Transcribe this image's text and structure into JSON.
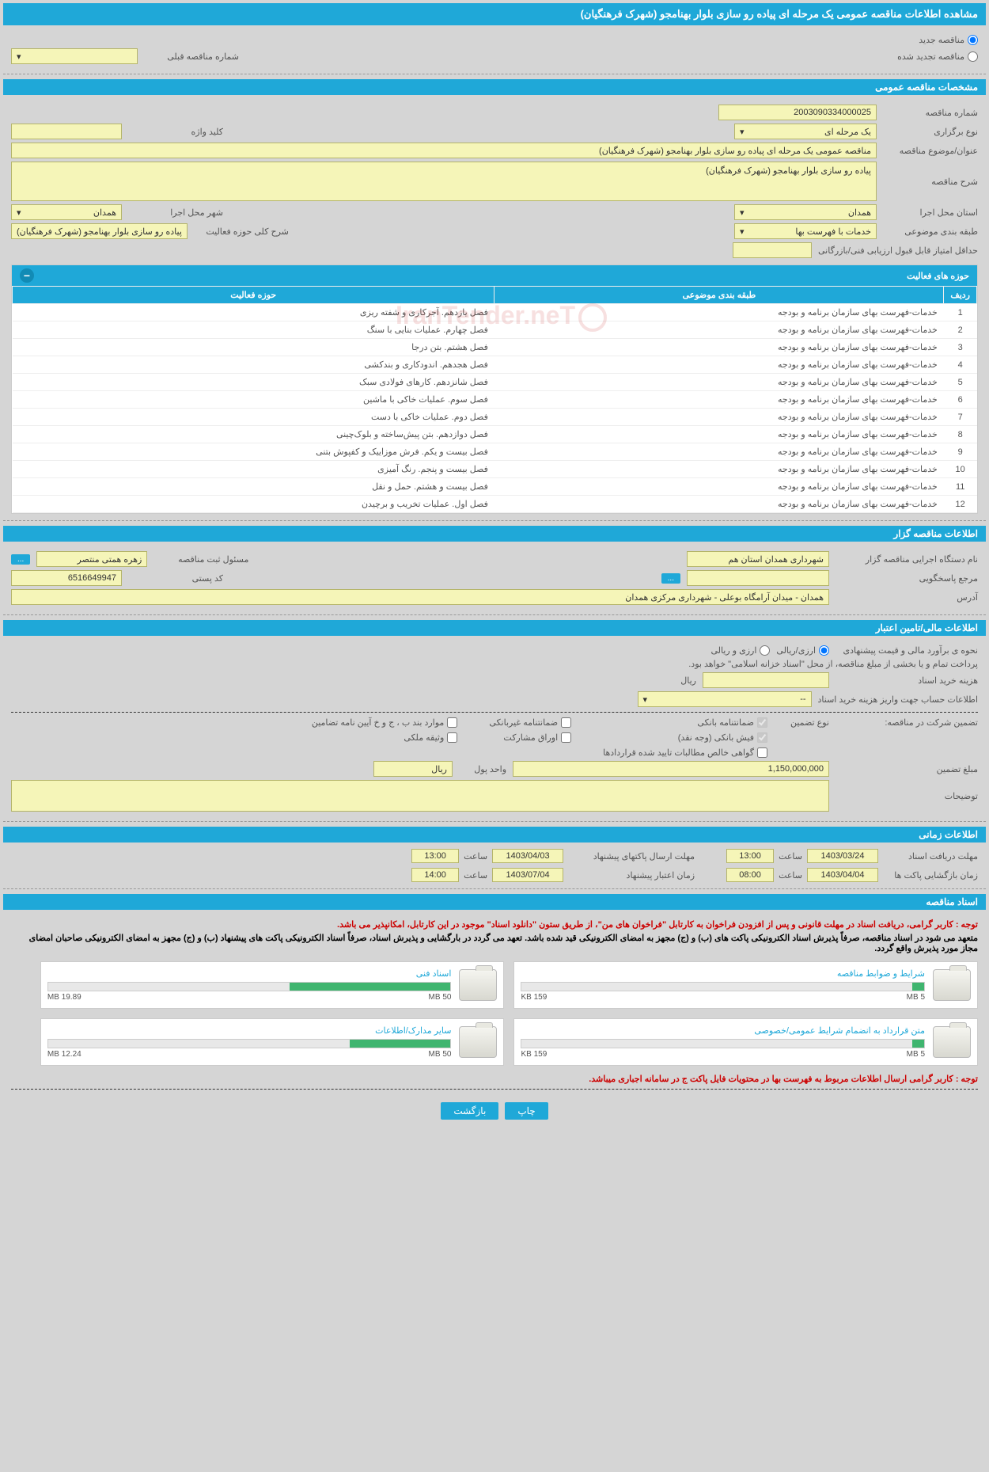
{
  "header": {
    "title": "مشاهده اطلاعات مناقصه عمومی یک مرحله ای پیاده رو سازی بلوار بهنامجو (شهرک فرهنگیان)"
  },
  "top_options": {
    "new_tender": "مناقصه جدید",
    "renewed_tender": "مناقصه تجدید شده",
    "prev_tender_label": "شماره مناقصه قبلی"
  },
  "sections": {
    "general": "مشخصات مناقصه عمومی",
    "tenderer": "اطلاعات مناقصه گزار",
    "financial": "اطلاعات مالی/تامین اعتبار",
    "timing": "اطلاعات زمانی",
    "documents": "اسناد مناقصه"
  },
  "general": {
    "tender_no_label": "شماره مناقصه",
    "tender_no": "2003090334000025",
    "type_label": "نوع برگزاری",
    "type": "یک مرحله ای",
    "keyword_label": "کلید واژه",
    "subject_label": "عنوان/موضوع مناقصه",
    "subject": "مناقصه عمومی یک مرحله ای پیاده رو سازی بلوار بهنامجو (شهرک فرهنگیان)",
    "desc_label": "شرح مناقصه",
    "desc": "پیاده رو سازی بلوار بهنامجو (شهرک فرهنگیان)",
    "province_label": "استان محل اجرا",
    "province": "همدان",
    "city_label": "شهر محل اجرا",
    "city": "همدان",
    "class_label": "طبقه بندی موضوعی",
    "class": "خدمات با فهرست بها",
    "scope_label": "شرح کلی حوزه فعالیت",
    "scope": "پیاده رو سازی بلوار بهنامجو (شهرک فرهنگیان)",
    "min_score_label": "حداقل امتیاز قابل قبول ارزیابی فنی/بازرگانی"
  },
  "activities": {
    "title": "حوزه های فعالیت",
    "columns": [
      "ردیف",
      "طبقه بندی موضوعی",
      "حوزه فعالیت"
    ],
    "rows": [
      [
        "1",
        "خدمات-فهرست بهای سازمان برنامه و بودجه",
        "فصل یازدهم. آجرکاری و شفته ریزی"
      ],
      [
        "2",
        "خدمات-فهرست بهای سازمان برنامه و بودجه",
        "فصل چهارم. عملیات بنایی با سنگ"
      ],
      [
        "3",
        "خدمات-فهرست بهای سازمان برنامه و بودجه",
        "فصل هشتم. بتن درجا"
      ],
      [
        "4",
        "خدمات-فهرست بهای سازمان برنامه و بودجه",
        "فصل هجدهم. اندودکاری و بندکشی"
      ],
      [
        "5",
        "خدمات-فهرست بهای سازمان برنامه و بودجه",
        "فصل شانزدهم. کارهای فولادی سبک"
      ],
      [
        "6",
        "خدمات-فهرست بهای سازمان برنامه و بودجه",
        "فصل سوم. عملیات خاکی با ماشین"
      ],
      [
        "7",
        "خدمات-فهرست بهای سازمان برنامه و بودجه",
        "فصل دوم. عملیات خاکی با دست"
      ],
      [
        "8",
        "خدمات-فهرست بهای سازمان برنامه و بودجه",
        "فصل دوازدهم. بتن پیش‌ساخته و بلوک‌چینی"
      ],
      [
        "9",
        "خدمات-فهرست بهای سازمان برنامه و بودجه",
        "فصل بیست و یکم. فرش موزاییک و کفپوش بتنی"
      ],
      [
        "10",
        "خدمات-فهرست بهای سازمان برنامه و بودجه",
        "فصل بیست و پنجم. رنگ آمیزی"
      ],
      [
        "11",
        "خدمات-فهرست بهای سازمان برنامه و بودجه",
        "فصل بیست و هشتم. حمل و نقل"
      ],
      [
        "12",
        "خدمات-فهرست بهای سازمان برنامه و بودجه",
        "فصل اول. عملیات تخریب و برچیدن"
      ]
    ]
  },
  "tenderer": {
    "exec_label": "نام دستگاه اجرایی مناقصه گزار",
    "exec": "شهرداری همدان استان هم",
    "reg_officer_label": "مسئول ثبت مناقصه",
    "reg_officer": "زهره همتی منتصر",
    "response_label": "مرجع پاسخگویی",
    "postal_label": "کد پستی",
    "postal": "6516649947",
    "address_label": "آدرس",
    "address": "همدان - میدان آرامگاه بوعلی - شهرداری مرکزی همدان"
  },
  "financial": {
    "estimate_label": "نحوه ی برآورد مالی و قیمت پیشنهادی",
    "opt_rial": "ارزی/ریالی",
    "opt_foreign": "ارزی و ریالی",
    "payment_note": "پرداخت تمام و یا بخشی از مبلغ مناقصه، از محل \"اسناد خزانه اسلامی\" خواهد بود.",
    "doc_cost_label": "هزینه خرید اسناد",
    "doc_cost_unit": "ریال",
    "account_label": "اطلاعات حساب جهت واریز هزینه خرید اسناد",
    "account": "--"
  },
  "guarantee": {
    "participate_label": "تضمین شرکت در مناقصه:",
    "type_label": "نوع تضمین",
    "bank_guarantee": "ضمانتنامه بانکی",
    "nonbank_guarantee": "ضمانتنامه غیربانکی",
    "bylaw_items": "موارد بند ب ، ج و خ آیین نامه تضامین",
    "bank_receipt": "فیش بانکی (وجه نقد)",
    "securities": "اوراق مشارکت",
    "property": "وثیقه ملکی",
    "net_claims": "گواهی خالص مطالبات تایید شده قراردادها",
    "amount_label": "مبلغ تضمین",
    "amount": "1,150,000,000",
    "unit_label": "واحد پول",
    "unit": "ریال",
    "notes_label": "توضیحات"
  },
  "timing": {
    "receive_docs_label": "مهلت دریافت اسناد",
    "receive_docs_date": "1403/03/24",
    "receive_docs_time": "13:00",
    "open_envelopes_label": "زمان بازگشایی پاکت ها",
    "open_envelopes_date": "1403/04/04",
    "open_envelopes_time": "08:00",
    "send_envelopes_label": "مهلت ارسال پاکتهای پیشنهاد",
    "send_envelopes_date": "1403/04/03",
    "send_envelopes_time": "13:00",
    "validity_label": "زمان اعتبار پیشنهاد",
    "validity_date": "1403/07/04",
    "validity_time": "14:00",
    "time_label": "ساعت"
  },
  "documents": {
    "notice1": "توجه : کاربر گرامی، دریافت اسناد در مهلت قانونی و پس از افزودن فراخوان به کارتابل \"فراخوان های من\"، از طریق ستون \"دانلود اسناد\" موجود در این کارتابل، امکانپذیر می باشد.",
    "notice2": "متعهد می شود در اسناد مناقصه، صرفاً پذیرش اسناد الکترونیکی پاکت های (ب) و (ج) مجهز به امضای الکترونیکی قید شده باشد. تعهد می گردد در بارگشایی و پذیرش اسناد، صرفاً اسناد الکترونیکی پاکت های پیشنهاد (ب) و (ج) مجهز به امضای الکترونیکی صاحبان امضای مجاز مورد پذیرش واقع گردد.",
    "notice3": "توجه : کاربر گرامی ارسال اطلاعات مربوط به فهرست بها در محتویات فایل پاکت ج در سامانه اجباری میباشد.",
    "files": [
      {
        "title": "شرایط و ضوابط مناقصه",
        "used": "159 KB",
        "max": "5 MB",
        "pct": 3
      },
      {
        "title": "اسناد فنی",
        "used": "19.89 MB",
        "max": "50 MB",
        "pct": 40
      },
      {
        "title": "متن قرارداد به انضمام شرایط عمومی/خصوصی",
        "used": "159 KB",
        "max": "5 MB",
        "pct": 3
      },
      {
        "title": "سایر مدارک/اطلاعات",
        "used": "12.24 MB",
        "max": "50 MB",
        "pct": 25
      }
    ]
  },
  "buttons": {
    "print": "چاپ",
    "back": "بازگشت"
  },
  "watermark": "IranTender.neT"
}
